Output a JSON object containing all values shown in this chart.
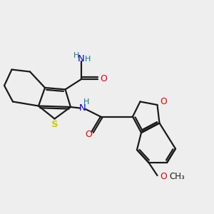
{
  "bg_color": "#eeeeee",
  "bond_color": "#1a1a1a",
  "atom_colors": {
    "S": "#cccc00",
    "N": "#0000ee",
    "O": "#ee0000",
    "H": "#008080",
    "C": "#1a1a1a"
  },
  "font_size": 9.0,
  "lw": 1.6
}
